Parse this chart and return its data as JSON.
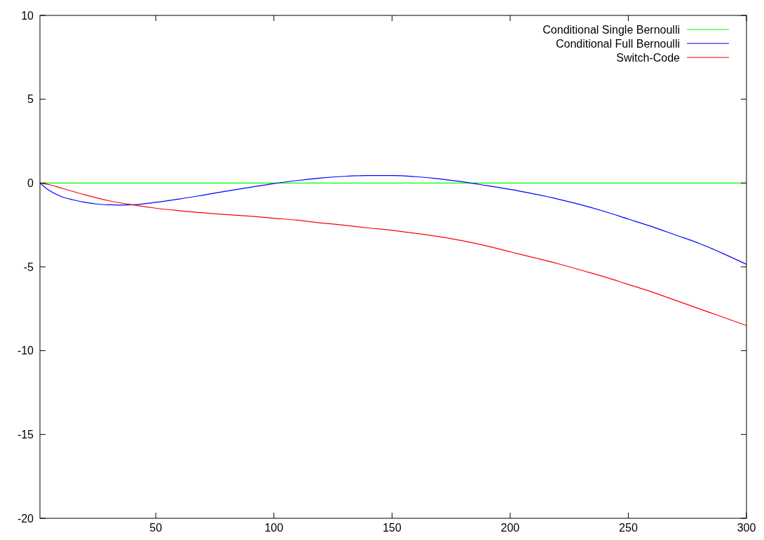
{
  "chart_data": {
    "type": "line",
    "xlim": [
      1,
      300
    ],
    "xticks": [
      50,
      100,
      150,
      200,
      250,
      300
    ],
    "ylim": [
      -20,
      10
    ],
    "yticks": [
      -20,
      -15,
      -10,
      -5,
      0,
      5,
      10
    ],
    "legend": "top right",
    "grid": false,
    "marker": "none",
    "line_style": "solid",
    "series": [
      {
        "name": "Conditional Single Bernoulli",
        "color": "#00ff00",
        "x": [
          1,
          300
        ],
        "values": [
          0,
          0
        ]
      },
      {
        "name": "Conditional Full Bernoulli",
        "color": "#0000ff",
        "x": [
          1,
          5,
          10,
          15,
          20,
          25,
          30,
          35,
          40,
          50,
          60,
          70,
          80,
          90,
          100,
          110,
          120,
          130,
          140,
          150,
          160,
          170,
          180,
          190,
          200,
          210,
          220,
          230,
          240,
          250,
          260,
          270,
          280,
          290,
          300
        ],
        "values": [
          0,
          -0.45,
          -0.8,
          -1.0,
          -1.15,
          -1.25,
          -1.3,
          -1.32,
          -1.3,
          -1.15,
          -0.95,
          -0.72,
          -0.48,
          -0.25,
          -0.03,
          0.15,
          0.3,
          0.4,
          0.45,
          0.45,
          0.38,
          0.25,
          0.07,
          -0.15,
          -0.38,
          -0.65,
          -0.95,
          -1.3,
          -1.7,
          -2.15,
          -2.6,
          -3.1,
          -3.6,
          -4.2,
          -4.85
        ]
      },
      {
        "name": "Switch-Code",
        "color": "#ff0000",
        "x": [
          1,
          5,
          10,
          20,
          30,
          40,
          50,
          60,
          70,
          80,
          90,
          100,
          110,
          120,
          130,
          140,
          150,
          160,
          170,
          180,
          190,
          200,
          210,
          220,
          230,
          240,
          250,
          260,
          270,
          280,
          290,
          300
        ],
        "values": [
          0,
          -0.1,
          -0.3,
          -0.7,
          -1.05,
          -1.3,
          -1.5,
          -1.65,
          -1.78,
          -1.88,
          -1.98,
          -2.1,
          -2.22,
          -2.38,
          -2.52,
          -2.68,
          -2.82,
          -3.0,
          -3.2,
          -3.45,
          -3.75,
          -4.1,
          -4.45,
          -4.8,
          -5.2,
          -5.6,
          -6.05,
          -6.5,
          -7.0,
          -7.5,
          -8.0,
          -8.5
        ]
      }
    ]
  }
}
